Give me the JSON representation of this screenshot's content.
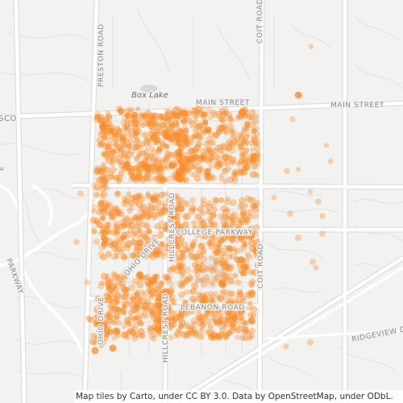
{
  "map": {
    "place_labels": {
      "box_lake": "Box Lake",
      "sco": "SCO"
    },
    "road_labels": {
      "preston_road": "PRESTON ROAD",
      "coit_road_north": "COIT ROAD",
      "coit_road_south": "COIT ROAD",
      "main_street_west": "MAIN STREET",
      "main_street_east": "MAIN STREET",
      "college_parkway": "COLLEGE PARKWAY",
      "ohio_drive_diag": "OHIO DRIVE",
      "ohio_drive_vert": "OHIO DRIVE",
      "hillcrest_road_north": "HILLCREST ROAD",
      "hillcrest_road_south": "HILLCREST ROAD",
      "lebanon_road": "LEBANON ROAD",
      "ridgeview_drive": "RIDGEVIEW DR",
      "parkway_west": "PARKWAY",
      "left_edge_road": "E"
    },
    "colors": {
      "background": "#f2f2f0",
      "road_major": "#ffffff",
      "road_casing": "#dcdcdc",
      "poi_dot": "#fb8c28"
    },
    "attribution": "Map tiles by Carto, under CC BY 3.0. Data by OpenStreetMap, under ODbL."
  }
}
